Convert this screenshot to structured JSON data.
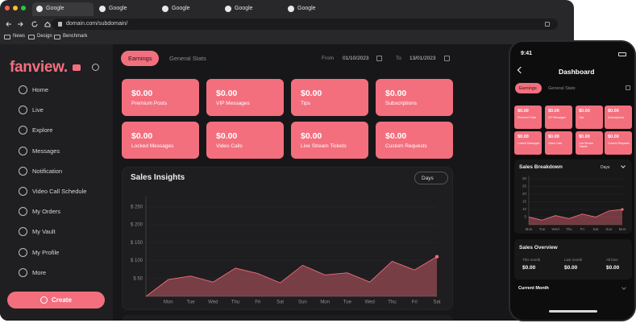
{
  "browser": {
    "tabs": [
      "Google",
      "Google",
      "Google",
      "Google",
      "Google"
    ],
    "url": "domain.com/subdomain/",
    "bookmarks": [
      "News",
      "Design",
      "Benchmark"
    ]
  },
  "sidebar": {
    "logo": "fanview.",
    "menu": [
      "Home",
      "Live",
      "Explore",
      "Messages",
      "Notification",
      "Video Call Schedule",
      "My Orders",
      "My Vault",
      "My Profile",
      "More"
    ],
    "create": "Create"
  },
  "main": {
    "tabs": [
      "Earnings",
      "General Stats"
    ],
    "from_label": "From",
    "from_date": "01/10/2023",
    "to_label": "To",
    "to_date": "13/01/2023",
    "cards": [
      {
        "value": "$0.00",
        "label": "Premium Posts"
      },
      {
        "value": "$0.00",
        "label": "VIP Messages"
      },
      {
        "value": "$0.00",
        "label": "Tips"
      },
      {
        "value": "$0.00",
        "label": "Subscriptions"
      },
      {
        "value": "$0.00",
        "label": "Locked Messages"
      },
      {
        "value": "$0.00",
        "label": "Video Calls"
      },
      {
        "value": "$0.00",
        "label": "Live Stream Tickets"
      },
      {
        "value": "$0.00",
        "label": "Custom Requests"
      }
    ],
    "sales_insights": {
      "type": "area",
      "title": "Sales Insights",
      "range": "Days",
      "ylim": [
        0,
        270
      ],
      "yticks": [
        {
          "value": 50,
          "label": "$ 50"
        },
        {
          "value": 100,
          "label": "$ 100"
        },
        {
          "value": 150,
          "label": "$ 150"
        },
        {
          "value": 200,
          "label": "$ 200"
        },
        {
          "value": 250,
          "label": "$ 250"
        }
      ],
      "categories": [
        null,
        "Mon",
        "Tue",
        "Wed",
        "Thu",
        "Fri",
        "Sat",
        "Sun",
        "Mon",
        "Tue",
        "Wed",
        "Thu",
        "Fri",
        "Sat"
      ],
      "values": [
        0,
        47,
        57,
        40,
        79,
        64,
        38,
        87,
        60,
        66,
        40,
        98,
        74,
        111
      ],
      "color": "#f26b7a"
    }
  },
  "phone": {
    "time": "9:41",
    "title": "Dashboard",
    "tabs": [
      "Earnings",
      "General Stats"
    ],
    "cards": [
      {
        "value": "$0.00",
        "label": "Premium Posts"
      },
      {
        "value": "$0.00",
        "label": "VIP Messages"
      },
      {
        "value": "$0.00",
        "label": "Tips"
      },
      {
        "value": "$0.00",
        "label": "Subscriptions"
      },
      {
        "value": "$0.00",
        "label": "Locked Messages"
      },
      {
        "value": "$0.00",
        "label": "Video Calls"
      },
      {
        "value": "$0.00",
        "label": "Live Stream Tickets"
      },
      {
        "value": "$0.00",
        "label": "Custom Requests"
      }
    ],
    "sales_breakdown": {
      "type": "area",
      "title": "Sales Breakdown",
      "range": "Days",
      "ylim": [
        0,
        30
      ],
      "yticks": [
        5,
        10,
        15,
        20,
        25,
        30
      ],
      "categories": [
        "Mon",
        "Tue",
        "Wed",
        "Thu",
        "Fri",
        "Sat",
        "Sun",
        "Mon"
      ],
      "values": [
        5,
        3,
        6,
        4,
        7,
        5,
        9,
        10
      ],
      "color": "#f26b7a"
    },
    "sales_overview": {
      "title": "Sales Overview",
      "items": [
        {
          "label": "This month",
          "value": "$0.00"
        },
        {
          "label": "Last month",
          "value": "$0.00"
        },
        {
          "label": "All time",
          "value": "$0.00"
        }
      ]
    },
    "current_month": "Current Month"
  }
}
